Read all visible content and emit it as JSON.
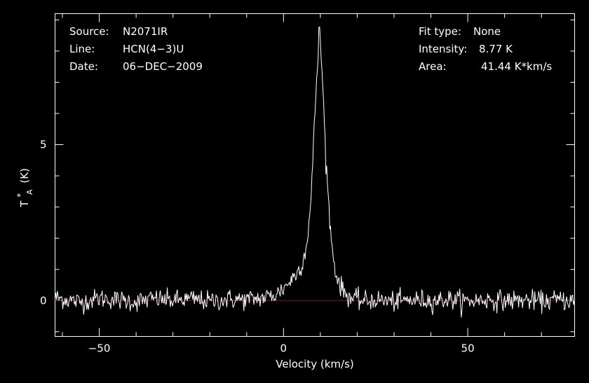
{
  "colors": {
    "background": "#000000",
    "foreground": "#ffffff",
    "baseline": "#c00000"
  },
  "header_left": {
    "source_label": "Source:",
    "source_value": "N2071IR",
    "line_label": "Line:",
    "line_value": "HCN(4−3)U",
    "date_label": "Date:",
    "date_value": "06−DEC−2009"
  },
  "header_right": {
    "fit_label": "Fit type:",
    "fit_value": "None",
    "intensity_label": "Intensity:",
    "intensity_value": "8.77 K",
    "area_label": "Area:",
    "area_value": "41.44 K*km/s"
  },
  "chart_data": {
    "type": "line",
    "title": "",
    "xlabel": "Velocity (km/s)",
    "ylabel_main": "T",
    "ylabel_sup": "*",
    "ylabel_sub": "A",
    "ylabel_unit": "(K)",
    "xlim": [
      -62,
      79
    ],
    "ylim": [
      -1.15,
      9.2
    ],
    "xticks": [
      {
        "value": -50,
        "label": "−50"
      },
      {
        "value": 0,
        "label": "0"
      },
      {
        "value": 50,
        "label": "50"
      }
    ],
    "yticks": [
      {
        "value": 0,
        "label": "0"
      },
      {
        "value": 5,
        "label": "5"
      }
    ],
    "x_minor_step": 10,
    "y_minor_step": 1,
    "grid": false,
    "baseline_value": 0,
    "baseline_style": "red horizontal line at T = 0",
    "series": [
      {
        "peak_velocity": 9.8,
        "peak_intensity": 8.77,
        "fwhm": 4.4,
        "integrated_area": 41.44,
        "rms_noise": 0.16,
        "channel_width": 0.21,
        "points": [
          [
            -62,
            0.1
          ],
          [
            -55,
            -0.05
          ],
          [
            -50,
            0.08
          ],
          [
            -45,
            0.02
          ],
          [
            -40,
            -0.04
          ],
          [
            -35,
            0.06
          ],
          [
            -30,
            0.0
          ],
          [
            -25,
            0.05
          ],
          [
            -20,
            -0.02
          ],
          [
            -15,
            0.04
          ],
          [
            -10,
            0.03
          ],
          [
            -5,
            0.1
          ],
          [
            -2,
            0.2
          ],
          [
            0,
            0.4
          ],
          [
            2,
            0.65
          ],
          [
            4,
            0.95
          ],
          [
            5,
            1.2
          ],
          [
            6,
            1.6
          ],
          [
            7,
            2.6
          ],
          [
            7.5,
            3.3
          ],
          [
            8,
            4.6
          ],
          [
            8.5,
            5.9
          ],
          [
            9,
            7.2
          ],
          [
            9.5,
            7.9
          ],
          [
            9.8,
            8.77
          ],
          [
            10.2,
            7.9
          ],
          [
            10.6,
            7.0
          ],
          [
            11,
            5.9
          ],
          [
            11.5,
            4.6
          ],
          [
            12,
            3.5
          ],
          [
            12.5,
            2.7
          ],
          [
            13,
            1.9
          ],
          [
            13.5,
            1.4
          ],
          [
            14,
            1.0
          ],
          [
            15,
            0.6
          ],
          [
            16,
            0.35
          ],
          [
            17,
            0.2
          ],
          [
            19,
            0.05
          ],
          [
            22,
            -0.02
          ],
          [
            25,
            0.03
          ],
          [
            30,
            -0.03
          ],
          [
            35,
            0.02
          ],
          [
            40,
            0.0
          ],
          [
            45,
            0.04
          ],
          [
            50,
            -0.02
          ],
          [
            55,
            0.03
          ],
          [
            60,
            0.0
          ],
          [
            65,
            0.02
          ],
          [
            70,
            -0.02
          ],
          [
            75,
            0.03
          ],
          [
            79,
            0.0
          ]
        ]
      }
    ]
  }
}
